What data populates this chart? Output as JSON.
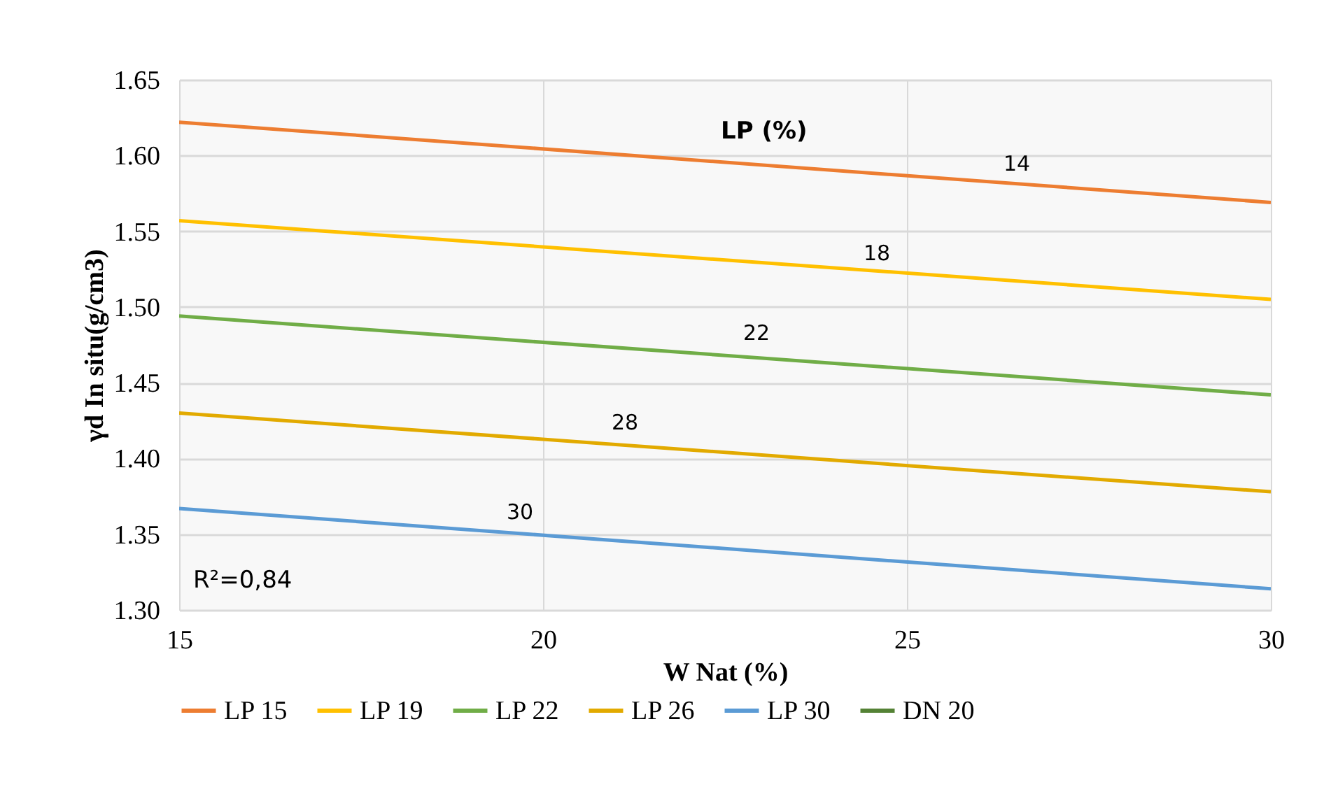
{
  "chart_data": {
    "type": "line",
    "xlabel": "W Nat (%)",
    "ylabel": "γd  In situ(g/cm3)",
    "x": [
      15,
      30
    ],
    "series": [
      {
        "name": "LP 15",
        "color": "#ed7d31",
        "values": [
          1.622,
          1.569
        ]
      },
      {
        "name": "LP 19",
        "color": "#ffc000",
        "values": [
          1.557,
          1.505
        ]
      },
      {
        "name": "LP 22",
        "color": "#70ad47",
        "values": [
          1.494,
          1.442
        ]
      },
      {
        "name": "LP 26",
        "color": "#e2aa00",
        "values": [
          1.43,
          1.378
        ]
      },
      {
        "name": "LP 30",
        "color": "#5b9bd5",
        "values": [
          1.367,
          1.314
        ]
      },
      {
        "name": "DN 20",
        "color": "#548235",
        "values": [
          null,
          null
        ]
      }
    ],
    "xlim": [
      15,
      30
    ],
    "xticks": [
      15,
      20,
      25,
      30
    ],
    "ylim": [
      1.3,
      1.65
    ],
    "yticks": [
      {
        "value": 1.3,
        "label": "1.30"
      },
      1.35,
      {
        "value": 1.4,
        "label": "1.40"
      },
      1.45,
      {
        "value": 1.5,
        "label": "1.50"
      },
      1.55,
      {
        "value": 1.6,
        "label": "1.60"
      },
      1.65
    ],
    "grid": true,
    "legend": "bottom",
    "marker": "none",
    "line_style": "solid",
    "annotations": [
      "LP (%)",
      "14",
      "18",
      "22",
      "28",
      "30",
      "R²=0,84"
    ]
  }
}
